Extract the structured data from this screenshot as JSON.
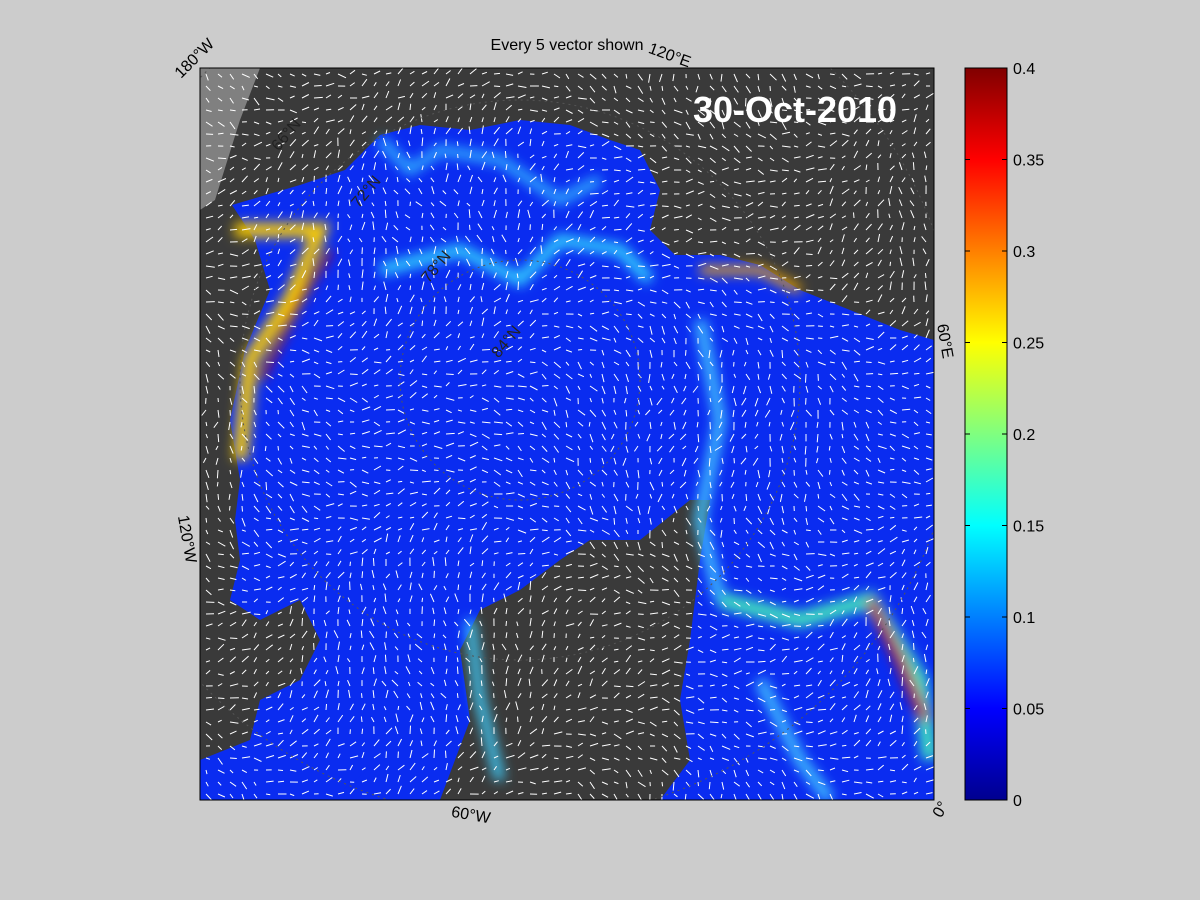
{
  "map": {
    "title": "Every 5 vector shown",
    "date": "30-Oct-2010",
    "longitude_labels": [
      "180°W",
      "120°E",
      "60°E",
      "0°",
      "60°W",
      "120°W"
    ],
    "latitude_labels": [
      "66°N",
      "72°N",
      "78°N",
      "84°N"
    ],
    "colorbar": {
      "lim": [
        0,
        0.4
      ],
      "ticks": [
        0,
        0.05,
        0.1,
        0.15,
        0.2,
        0.25,
        0.3,
        0.35,
        0.4
      ]
    }
  }
}
